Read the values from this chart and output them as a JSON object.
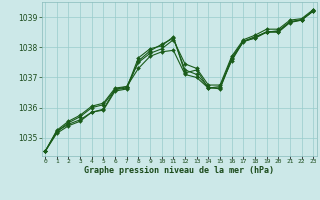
{
  "title": "Graphe pression niveau de la mer (hPa)",
  "x_labels": [
    "0",
    "1",
    "2",
    "3",
    "4",
    "5",
    "6",
    "7",
    "8",
    "9",
    "10",
    "11",
    "12",
    "13",
    "14",
    "15",
    "16",
    "17",
    "18",
    "19",
    "20",
    "21",
    "22",
    "23"
  ],
  "ylim": [
    1034.4,
    1039.5
  ],
  "yticks": [
    1035,
    1036,
    1037,
    1038,
    1039
  ],
  "background_color": "#cce8e8",
  "grid_color": "#99cccc",
  "line_color": "#1a5c1a",
  "title_color": "#1a4a1a",
  "series": [
    [
      1034.55,
      1035.15,
      1035.4,
      1035.55,
      1035.85,
      1035.95,
      1036.6,
      1036.65,
      1037.65,
      1037.95,
      1038.05,
      1038.35,
      1037.15,
      1037.25,
      1036.65,
      1036.7,
      1037.55,
      1038.2,
      1038.3,
      1038.5,
      1038.55,
      1038.85,
      1038.9,
      1039.2
    ],
    [
      1034.55,
      1035.2,
      1035.5,
      1035.7,
      1036.0,
      1036.1,
      1036.6,
      1036.7,
      1037.5,
      1037.8,
      1037.95,
      1038.25,
      1037.45,
      1037.3,
      1036.75,
      1036.75,
      1037.7,
      1038.25,
      1038.4,
      1038.6,
      1038.6,
      1038.9,
      1038.95,
      1039.25
    ],
    [
      1034.55,
      1035.25,
      1035.55,
      1035.75,
      1036.05,
      1036.15,
      1036.65,
      1036.7,
      1037.3,
      1037.7,
      1037.85,
      1037.9,
      1037.1,
      1037.0,
      1036.65,
      1036.65,
      1037.65,
      1038.2,
      1038.35,
      1038.5,
      1038.5,
      1038.82,
      1038.9,
      1039.22
    ],
    [
      1034.55,
      1035.22,
      1035.45,
      1035.6,
      1035.85,
      1035.92,
      1036.55,
      1036.62,
      1037.55,
      1037.88,
      1038.1,
      1038.3,
      1037.25,
      1037.1,
      1036.68,
      1036.62,
      1037.6,
      1038.18,
      1038.32,
      1038.52,
      1038.52,
      1038.84,
      1038.92,
      1039.2
    ]
  ]
}
